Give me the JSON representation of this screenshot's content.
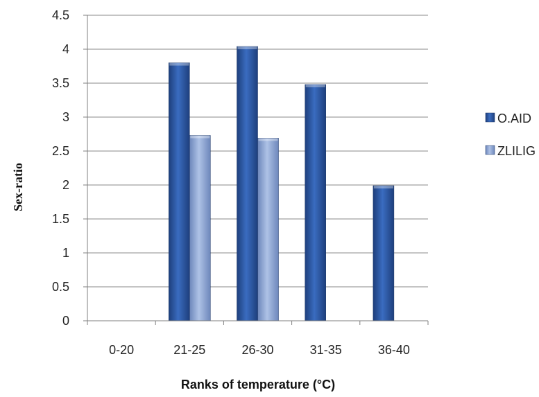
{
  "chart_data": {
    "type": "bar",
    "xlabel": "Ranks of temperature (°C)",
    "ylabel": "Sex-ratio",
    "categories": [
      "0-20",
      "21-25",
      "26-30",
      "31-35",
      "36-40"
    ],
    "series": [
      {
        "name": "O.AID",
        "values": [
          0,
          3.8,
          4.04,
          3.48,
          1.99
        ],
        "color": "#2f5aa8"
      },
      {
        "name": "ZLILIG",
        "values": [
          0,
          2.73,
          2.69,
          0,
          0
        ],
        "color": "#8fa9d8"
      }
    ],
    "ylim": [
      0,
      4.5
    ],
    "yticks": [
      "0",
      "0.5",
      "1",
      "1.5",
      "2",
      "2.5",
      "3",
      "3.5",
      "4",
      "4.5"
    ],
    "grid": true,
    "legend": "right"
  }
}
